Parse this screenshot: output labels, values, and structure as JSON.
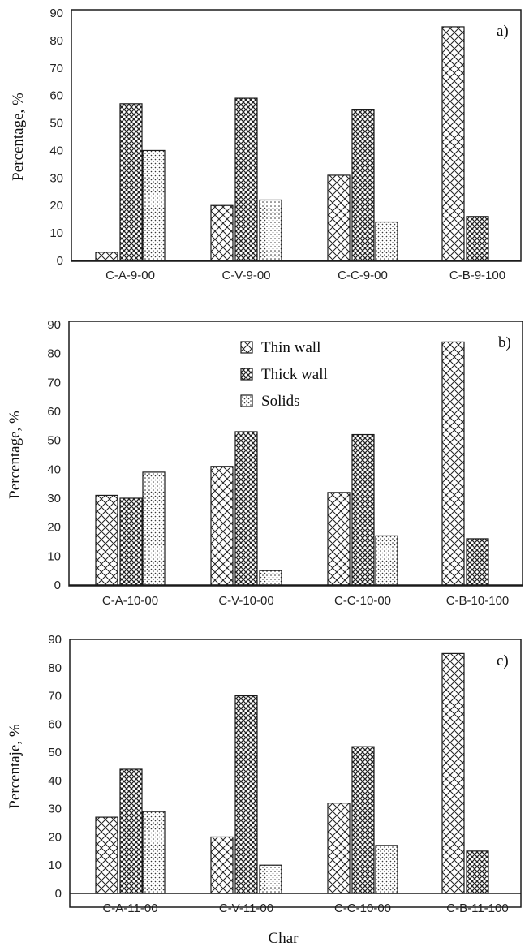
{
  "colors": {
    "bar_stroke": "#1a1a1a",
    "axis": "#1a1a1a",
    "frame": "#1a1a1a"
  },
  "legend": {
    "placement": "top-center of panel b",
    "entries": [
      "Thin wall",
      "Thick wall",
      "Solids"
    ]
  },
  "xlabel": "Char",
  "chart_data": [
    {
      "type": "bar",
      "panel_label": "a)",
      "ylabel": "Percentage, %",
      "ylim": [
        0,
        90
      ],
      "yticks": [
        0,
        10,
        20,
        30,
        40,
        50,
        60,
        70,
        80,
        90
      ],
      "categories": [
        "C-A-9-00",
        "C-V-9-00",
        "C-C-9-00",
        "C-B-9-100"
      ],
      "series": [
        {
          "name": "Thin wall",
          "pattern": "crosshatch",
          "values": [
            3,
            20,
            31,
            85
          ]
        },
        {
          "name": "Thick wall",
          "pattern": "dense",
          "values": [
            57,
            59,
            55,
            16
          ]
        },
        {
          "name": "Solids",
          "pattern": "dots",
          "values": [
            40,
            22,
            14,
            null
          ]
        }
      ]
    },
    {
      "type": "bar",
      "panel_label": "b)",
      "ylabel": "Percentage, %",
      "ylim": [
        0,
        90
      ],
      "yticks": [
        0,
        10,
        20,
        30,
        40,
        50,
        60,
        70,
        80,
        90
      ],
      "categories": [
        "C-A-10-00",
        "C-V-10-00",
        "C-C-10-00",
        "C-B-10-100"
      ],
      "series": [
        {
          "name": "Thin wall",
          "pattern": "crosshatch",
          "values": [
            31,
            41,
            32,
            84
          ]
        },
        {
          "name": "Thick wall",
          "pattern": "dense",
          "values": [
            30,
            53,
            52,
            16
          ]
        },
        {
          "name": "Solids",
          "pattern": "dots",
          "values": [
            39,
            5,
            17,
            null
          ]
        }
      ]
    },
    {
      "type": "bar",
      "panel_label": "c)",
      "ylabel": "Percentaje, %",
      "ylim": [
        0,
        90
      ],
      "yticks": [
        0,
        10,
        20,
        30,
        40,
        50,
        60,
        70,
        80,
        90
      ],
      "categories": [
        "C-A-11-00",
        "C-V-11-00",
        "C-C-10-00",
        "C-B-11-100"
      ],
      "series": [
        {
          "name": "Thin wall",
          "pattern": "crosshatch",
          "values": [
            27,
            20,
            32,
            85
          ]
        },
        {
          "name": "Thick wall",
          "pattern": "dense",
          "values": [
            44,
            70,
            52,
            15
          ]
        },
        {
          "name": "Solids",
          "pattern": "dots",
          "values": [
            29,
            10,
            17,
            null
          ]
        }
      ]
    }
  ]
}
